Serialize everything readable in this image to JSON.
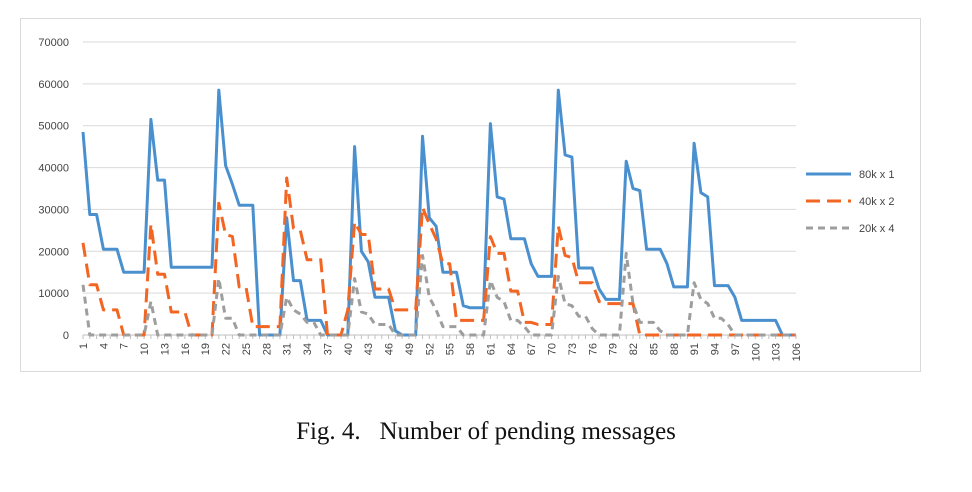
{
  "caption": {
    "label": "Fig. 4.",
    "text": "Number of pending messages"
  },
  "chart_data": {
    "type": "line",
    "title": "",
    "xlabel": "",
    "ylabel": "",
    "ylim": [
      0,
      70000
    ],
    "yticks": [
      0,
      10000,
      20000,
      30000,
      40000,
      50000,
      60000,
      70000
    ],
    "grid": "horizontal",
    "legend_position": "right",
    "x": [
      1,
      2,
      3,
      4,
      5,
      6,
      7,
      8,
      9,
      10,
      11,
      12,
      13,
      14,
      15,
      16,
      17,
      18,
      19,
      20,
      21,
      22,
      23,
      24,
      25,
      26,
      27,
      28,
      29,
      30,
      31,
      32,
      33,
      34,
      35,
      36,
      37,
      38,
      39,
      40,
      41,
      42,
      43,
      44,
      45,
      46,
      47,
      48,
      49,
      50,
      51,
      52,
      53,
      54,
      55,
      56,
      57,
      58,
      59,
      60,
      61,
      62,
      63,
      64,
      65,
      66,
      67,
      68,
      69,
      70,
      71,
      72,
      73,
      74,
      75,
      76,
      77,
      78,
      79,
      80,
      81,
      82,
      83,
      84,
      85,
      86,
      87,
      88,
      89,
      90,
      91,
      92,
      93,
      94,
      95,
      96,
      97,
      98,
      99,
      100,
      101,
      102,
      103,
      104,
      105,
      106
    ],
    "x_tick_labels": [
      "1",
      "4",
      "7",
      "10",
      "13",
      "16",
      "19",
      "22",
      "25",
      "28",
      "31",
      "34",
      "37",
      "40",
      "43",
      "46",
      "49",
      "52",
      "55",
      "58",
      "61",
      "64",
      "67",
      "70",
      "73",
      "76",
      "79",
      "82",
      "85",
      "88",
      "91",
      "94",
      "97",
      "100",
      "103",
      "106"
    ],
    "series": [
      {
        "name": "80k x 1",
        "color": "#4a90cf",
        "dash": "solid",
        "values": [
          48500,
          28800,
          28800,
          20500,
          20500,
          20500,
          15000,
          15000,
          15000,
          15000,
          51500,
          37000,
          37000,
          16200,
          16200,
          16200,
          16200,
          16200,
          16200,
          16200,
          58500,
          40500,
          36000,
          31000,
          31000,
          31000,
          0,
          0,
          0,
          0,
          28000,
          13000,
          13000,
          3500,
          3500,
          3500,
          0,
          0,
          0,
          0,
          45000,
          20000,
          17500,
          9000,
          9000,
          9000,
          1000,
          0,
          0,
          0,
          47500,
          28000,
          26000,
          15000,
          15000,
          15000,
          7000,
          6500,
          6500,
          6500,
          50500,
          33000,
          32500,
          23000,
          23000,
          23000,
          17000,
          14000,
          14000,
          14000,
          58500,
          43000,
          42500,
          16000,
          16000,
          16000,
          11000,
          8500,
          8500,
          8500,
          41500,
          35000,
          34500,
          20500,
          20500,
          20500,
          17000,
          11500,
          11500,
          11500,
          45800,
          34000,
          33000,
          11800,
          11800,
          11800,
          9000,
          3500,
          3500,
          3500,
          3500,
          3500,
          3500,
          0,
          0,
          0
        ]
      },
      {
        "name": "40k x 2",
        "color": "#f26522",
        "dash": "long-dash",
        "values": [
          22000,
          12000,
          12000,
          6000,
          6000,
          6000,
          0,
          0,
          0,
          0,
          26500,
          14500,
          14500,
          5500,
          5500,
          5500,
          0,
          0,
          0,
          0,
          31500,
          24000,
          23500,
          11500,
          11500,
          2000,
          2000,
          2000,
          2000,
          2000,
          37500,
          25500,
          25000,
          18000,
          18000,
          18000,
          0,
          0,
          0,
          6000,
          27000,
          24000,
          24000,
          11000,
          11000,
          11000,
          6000,
          6000,
          6000,
          6000,
          30500,
          26500,
          23000,
          17000,
          17000,
          3500,
          3500,
          3500,
          3500,
          3500,
          23500,
          19500,
          19500,
          10500,
          10500,
          3000,
          3000,
          2500,
          2500,
          2500,
          26000,
          19000,
          18500,
          12500,
          12500,
          12500,
          8000,
          7500,
          7500,
          7500,
          7500,
          7500,
          0,
          0,
          0,
          0,
          0,
          0,
          0,
          0,
          0,
          0,
          0,
          0,
          0,
          0,
          0,
          0,
          0,
          0,
          0,
          0,
          0,
          0,
          0,
          0
        ]
      },
      {
        "name": "20k x 4",
        "color": "#9e9e9e",
        "dash": "short-dash",
        "values": [
          12000,
          0,
          0,
          0,
          0,
          0,
          0,
          0,
          0,
          0,
          8000,
          0,
          0,
          0,
          0,
          0,
          0,
          0,
          0,
          0,
          13500,
          4000,
          4000,
          0,
          0,
          0,
          0,
          0,
          0,
          0,
          9000,
          6000,
          5000,
          3000,
          3000,
          0,
          0,
          0,
          0,
          0,
          13500,
          5500,
          5000,
          2500,
          2500,
          2500,
          0,
          0,
          0,
          0,
          19000,
          9000,
          6000,
          2000,
          2000,
          2000,
          0,
          0,
          0,
          0,
          13000,
          9000,
          8000,
          3500,
          3500,
          2000,
          0,
          0,
          0,
          0,
          14000,
          7500,
          7000,
          4500,
          4500,
          1500,
          0,
          0,
          0,
          0,
          19500,
          7500,
          3000,
          3000,
          3000,
          1000,
          0,
          0,
          0,
          0,
          12500,
          8500,
          7500,
          4000,
          4000,
          2500,
          0,
          0,
          0,
          0,
          0,
          0,
          0,
          0,
          0,
          0
        ]
      }
    ]
  }
}
